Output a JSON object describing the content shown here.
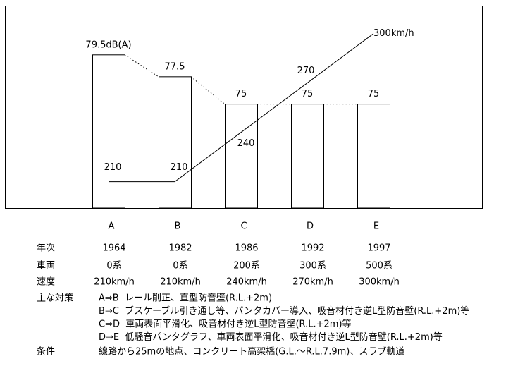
{
  "chart_data": {
    "type": "bar",
    "categories": [
      "A",
      "B",
      "C",
      "D",
      "E"
    ],
    "values": [
      79.5,
      77.5,
      75,
      75,
      75
    ],
    "value_labels": [
      "79.5dB(A)",
      "77.5",
      "75",
      "75",
      "75"
    ],
    "color": "#ffffff",
    "ylim": [
      65.5,
      84
    ],
    "series": [
      {
        "type": "line",
        "axis": "y2",
        "color": "#000000",
        "values": [
          210,
          210,
          240,
          270,
          300
        ],
        "value_labels": [
          "210",
          "210",
          "240",
          "270",
          "300km/h"
        ]
      }
    ],
    "y2lim": [
      194,
      317
    ]
  },
  "table": {
    "rows": [
      [
        "年次",
        "1964",
        "1982",
        "1986",
        "1992",
        "1997"
      ],
      [
        "車両",
        "0系",
        "0系",
        "200系",
        "300系",
        "500系"
      ],
      [
        "速度",
        "210km/h",
        "210km/h",
        "240km/h",
        "270km/h",
        "300km/h"
      ]
    ],
    "measures": {
      "label": "主な対策",
      "items": [
        "A⇒B  レール削正、直型防音壁(R.L.+2m)",
        "B⇒C  ブスケーブル引き通し等、パンタカバー導入、吸音材付き逆L型防音壁(R.L.+2m)等",
        "C⇒D  車両表面平滑化、吸音材付き逆L型防音壁(R.L.+2m)等",
        "D⇒E  低騒音パンタグラフ、車両表面平滑化、吸音材付き逆L型防音壁(R.L.+2m)等"
      ]
    },
    "conditions": {
      "label": "条件",
      "text": "線路から25mの地点、コンクリート高架橋(G.L.～R.L.7.9m)、スラブ軌道"
    }
  }
}
